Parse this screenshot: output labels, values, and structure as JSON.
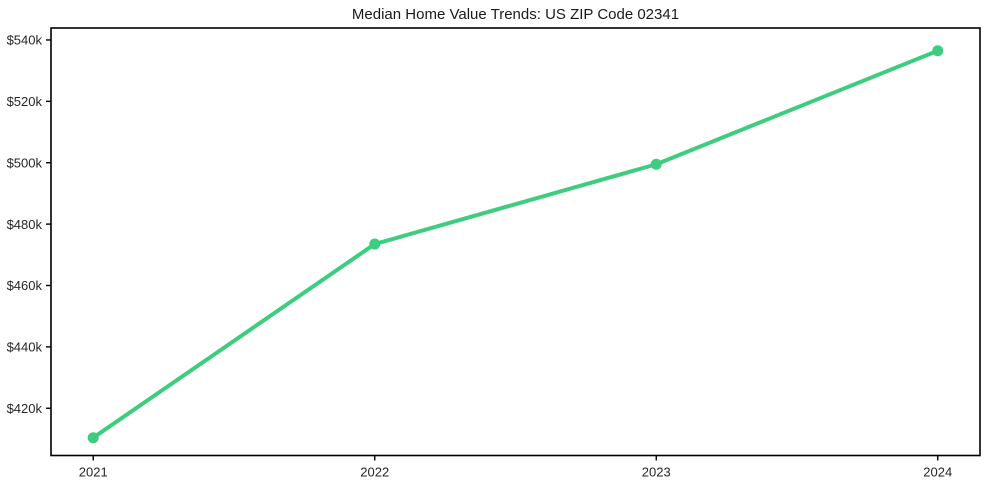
{
  "chart_data": {
    "type": "line",
    "title": "Median Home Value Trends: US ZIP Code 02341",
    "xlabel": "",
    "ylabel": "",
    "x": [
      2021,
      2022,
      2023,
      2024
    ],
    "series": [
      {
        "name": "Median Home Value",
        "values": [
          410400,
          473500,
          499500,
          536500
        ]
      }
    ],
    "x_tick_labels": [
      "2021",
      "2022",
      "2023",
      "2024"
    ],
    "y_ticks": [
      420000,
      440000,
      460000,
      480000,
      500000,
      520000,
      540000
    ],
    "y_tick_labels": [
      "$420k",
      "$440k",
      "$460k",
      "$480k",
      "$500k",
      "$520k",
      "$540k"
    ],
    "xlim": [
      2020.85,
      2024.15
    ],
    "ylim": [
      404600,
      543900
    ],
    "grid": false,
    "legend": "none",
    "line_color": "#3ecd7f",
    "marker": "circle",
    "background": "#ffffff",
    "axis_color": "#000000",
    "tick_text_color": "#262626",
    "title_color": "#1a1a1a"
  }
}
